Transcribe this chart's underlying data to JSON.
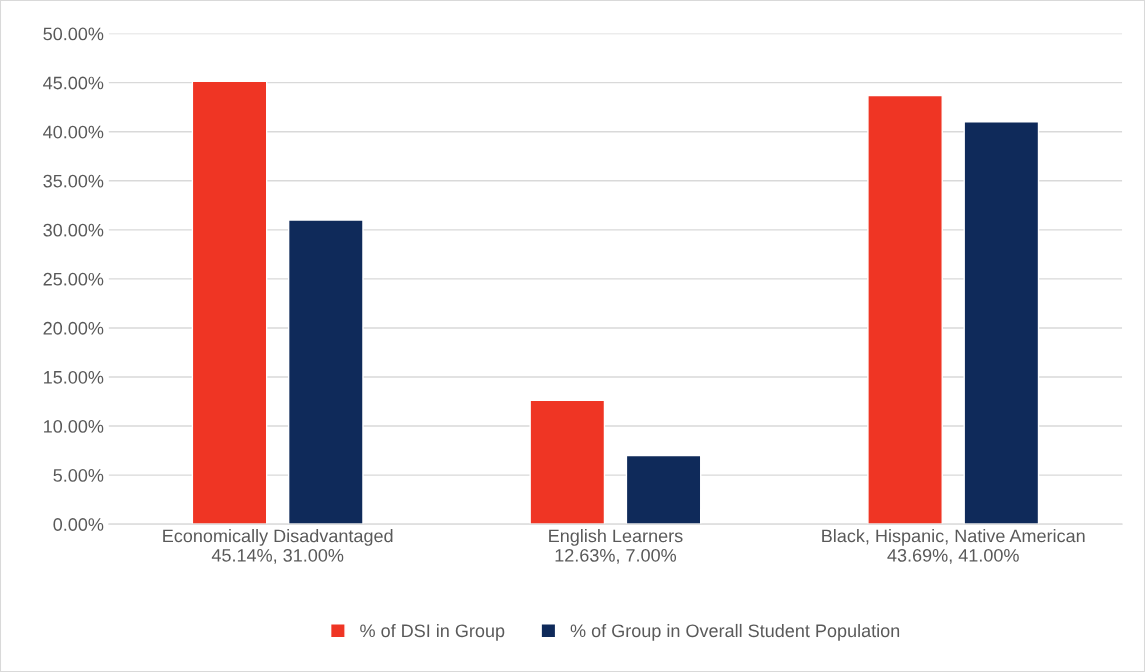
{
  "chart_data": {
    "type": "bar",
    "categories": [
      "Economically Disadvantaged\n45.14%, 31.00%",
      "English Learners\n12.63%, 7.00%",
      "Black, Hispanic, Native American\n43.69%, 41.00%"
    ],
    "series": [
      {
        "name": "% of DSI in Group",
        "color": "#ef3524",
        "values": [
          45.14,
          12.63,
          43.69
        ]
      },
      {
        "name": "% of Group in Overall Student Population",
        "color": "#0f2a5a",
        "values": [
          31.0,
          7.0,
          41.0
        ]
      }
    ],
    "ylim": [
      0,
      50
    ],
    "yticks": [
      {
        "value": 0,
        "label": "0.00%"
      },
      {
        "value": 5,
        "label": "5.00%"
      },
      {
        "value": 10,
        "label": "10.00%"
      },
      {
        "value": 15,
        "label": "15.00%"
      },
      {
        "value": 20,
        "label": "20.00%"
      },
      {
        "value": 25,
        "label": "25.00%"
      },
      {
        "value": 30,
        "label": "30.00%"
      },
      {
        "value": 35,
        "label": "35.00%"
      },
      {
        "value": 40,
        "label": "40.00%"
      },
      {
        "value": 45,
        "label": "45.00%"
      },
      {
        "value": 50,
        "label": "50.00%"
      }
    ],
    "grid": "y",
    "legend": "bottom"
  }
}
